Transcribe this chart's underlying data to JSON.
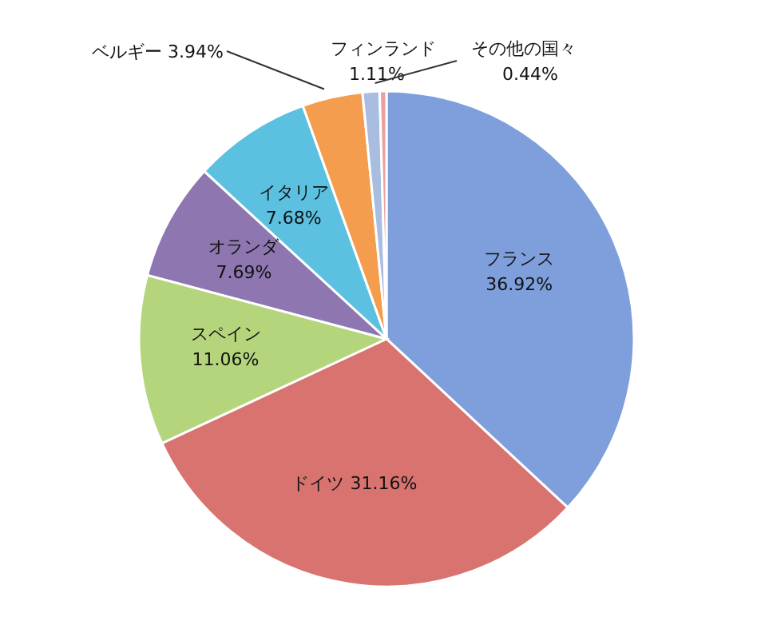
{
  "chart_data": {
    "type": "pie",
    "categories": [
      "フランス",
      "ドイツ",
      "スペイン",
      "オランダ",
      "イタリア",
      "ベルギー",
      "フィンランド",
      "その他の国々"
    ],
    "values": [
      36.92,
      31.16,
      11.06,
      7.69,
      7.68,
      3.94,
      1.11,
      0.44
    ],
    "value_labels": [
      "36.92%",
      "31.16%",
      "11.06%",
      "7.69%",
      "7.68%",
      "3.94%",
      "1.11%",
      "0.44%"
    ],
    "colors": [
      "#7f9fdc",
      "#d9736f",
      "#b5d57c",
      "#8e77b0",
      "#5cc0e0",
      "#f59d4e",
      "#a8bde0",
      "#e8a0a0"
    ],
    "legend": false
  }
}
